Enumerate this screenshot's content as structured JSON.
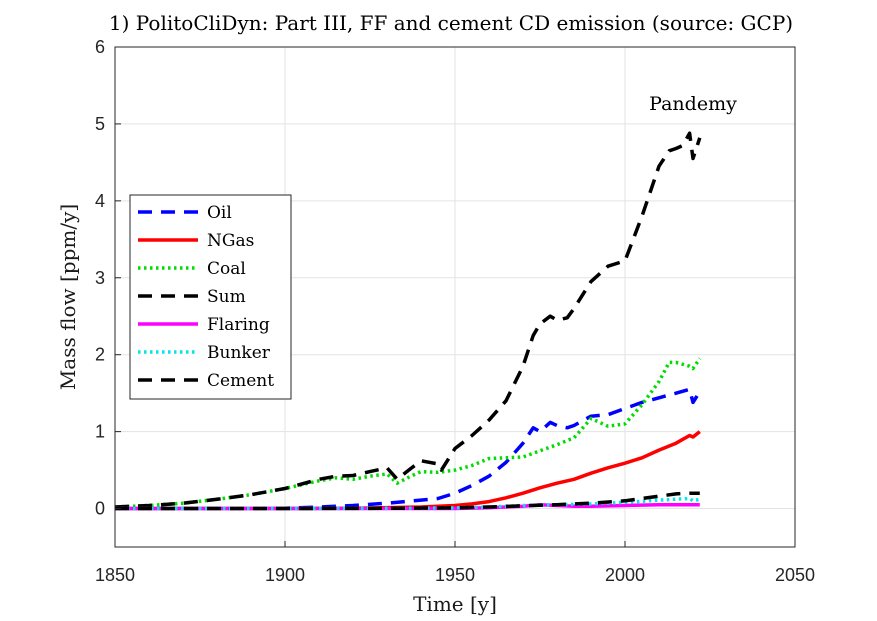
{
  "chart_data": {
    "type": "line",
    "title": "1) PolitoCliDyn: Part III, FF and cement CD emission (source: GCP)",
    "xlabel": "Time [y]",
    "ylabel": "Mass flow [ppm/y]",
    "xlim": [
      1850,
      2050
    ],
    "ylim": [
      -0.5,
      6
    ],
    "xticks": [
      1850,
      1900,
      1950,
      2000,
      2050
    ],
    "yticks": [
      0,
      1,
      2,
      3,
      4,
      5,
      6
    ],
    "grid": true,
    "legend_position": "middle-left",
    "annotation": {
      "text": "Pandemy",
      "x": 2020,
      "y": 5.18
    },
    "series": [
      {
        "name": "Oil",
        "color": "#0000ff",
        "style": "dashed",
        "x": [
          1850,
          1870,
          1890,
          1900,
          1910,
          1920,
          1930,
          1940,
          1945,
          1950,
          1955,
          1960,
          1965,
          1970,
          1973,
          1975,
          1978,
          1980,
          1983,
          1985,
          1990,
          1995,
          2000,
          2005,
          2010,
          2015,
          2019,
          2020,
          2022
        ],
        "y": [
          0,
          0,
          0,
          0.005,
          0.02,
          0.04,
          0.07,
          0.11,
          0.13,
          0.2,
          0.3,
          0.42,
          0.6,
          0.85,
          1.05,
          1.0,
          1.12,
          1.08,
          1.05,
          1.08,
          1.2,
          1.22,
          1.3,
          1.38,
          1.44,
          1.5,
          1.55,
          1.38,
          1.52
        ]
      },
      {
        "name": "NGas",
        "color": "#ff0000",
        "style": "solid",
        "x": [
          1850,
          1900,
          1920,
          1940,
          1950,
          1955,
          1960,
          1965,
          1970,
          1975,
          1980,
          1985,
          1990,
          1995,
          2000,
          2005,
          2010,
          2015,
          2019,
          2020,
          2022
        ],
        "y": [
          0,
          0,
          0.003,
          0.02,
          0.04,
          0.06,
          0.09,
          0.14,
          0.2,
          0.27,
          0.33,
          0.38,
          0.46,
          0.53,
          0.59,
          0.66,
          0.76,
          0.85,
          0.95,
          0.93,
          1.0
        ]
      },
      {
        "name": "Coal",
        "color": "#00dd00",
        "style": "dotted",
        "x": [
          1850,
          1860,
          1870,
          1880,
          1890,
          1900,
          1910,
          1915,
          1920,
          1925,
          1930,
          1933,
          1937,
          1940,
          1945,
          1950,
          1955,
          1960,
          1965,
          1970,
          1975,
          1980,
          1985,
          1990,
          1995,
          2000,
          2005,
          2010,
          2013,
          2015,
          2019,
          2020,
          2022
        ],
        "y": [
          0.02,
          0.04,
          0.07,
          0.12,
          0.18,
          0.26,
          0.36,
          0.4,
          0.38,
          0.42,
          0.45,
          0.33,
          0.42,
          0.48,
          0.47,
          0.5,
          0.56,
          0.65,
          0.66,
          0.67,
          0.75,
          0.83,
          0.92,
          1.17,
          1.07,
          1.1,
          1.35,
          1.65,
          1.9,
          1.9,
          1.85,
          1.82,
          1.95
        ]
      },
      {
        "name": "Sum",
        "color": "#000000",
        "style": "dashed",
        "x": [
          1850,
          1860,
          1870,
          1880,
          1890,
          1900,
          1910,
          1915,
          1920,
          1925,
          1930,
          1933,
          1937,
          1940,
          1945,
          1946,
          1950,
          1955,
          1960,
          1965,
          1970,
          1973,
          1975,
          1978,
          1980,
          1983,
          1985,
          1990,
          1995,
          2000,
          2005,
          2010,
          2013,
          2015,
          2017,
          2019,
          2020,
          2022
        ],
        "y": [
          0.02,
          0.04,
          0.07,
          0.12,
          0.18,
          0.26,
          0.38,
          0.42,
          0.43,
          0.48,
          0.53,
          0.38,
          0.52,
          0.62,
          0.58,
          0.5,
          0.78,
          0.95,
          1.15,
          1.4,
          1.85,
          2.25,
          2.4,
          2.5,
          2.45,
          2.48,
          2.6,
          2.95,
          3.15,
          3.22,
          3.8,
          4.45,
          4.65,
          4.68,
          4.72,
          4.88,
          4.55,
          4.82
        ]
      },
      {
        "name": "Flaring",
        "color": "#ff00ff",
        "style": "solid",
        "x": [
          1850,
          1950,
          1960,
          1970,
          1975,
          1980,
          1985,
          1990,
          2000,
          2010,
          2022
        ],
        "y": [
          0,
          0,
          0.01,
          0.03,
          0.05,
          0.04,
          0.03,
          0.03,
          0.04,
          0.05,
          0.05
        ]
      },
      {
        "name": "Bunker",
        "color": "#00e5ee",
        "style": "dotted",
        "x": [
          1850,
          1900,
          1940,
          1950,
          1960,
          1970,
          1980,
          1990,
          2000,
          2010,
          2019,
          2020,
          2022
        ],
        "y": [
          0,
          0,
          0.005,
          0.01,
          0.02,
          0.04,
          0.05,
          0.06,
          0.08,
          0.11,
          0.13,
          0.1,
          0.12
        ]
      },
      {
        "name": "Cement",
        "color": "#000000",
        "style": "dashed",
        "x": [
          1850,
          1900,
          1930,
          1950,
          1960,
          1970,
          1980,
          1990,
          2000,
          2010,
          2015,
          2019,
          2022
        ],
        "y": [
          0,
          0,
          0.003,
          0.008,
          0.02,
          0.035,
          0.05,
          0.07,
          0.1,
          0.16,
          0.19,
          0.2,
          0.2
        ]
      }
    ]
  }
}
